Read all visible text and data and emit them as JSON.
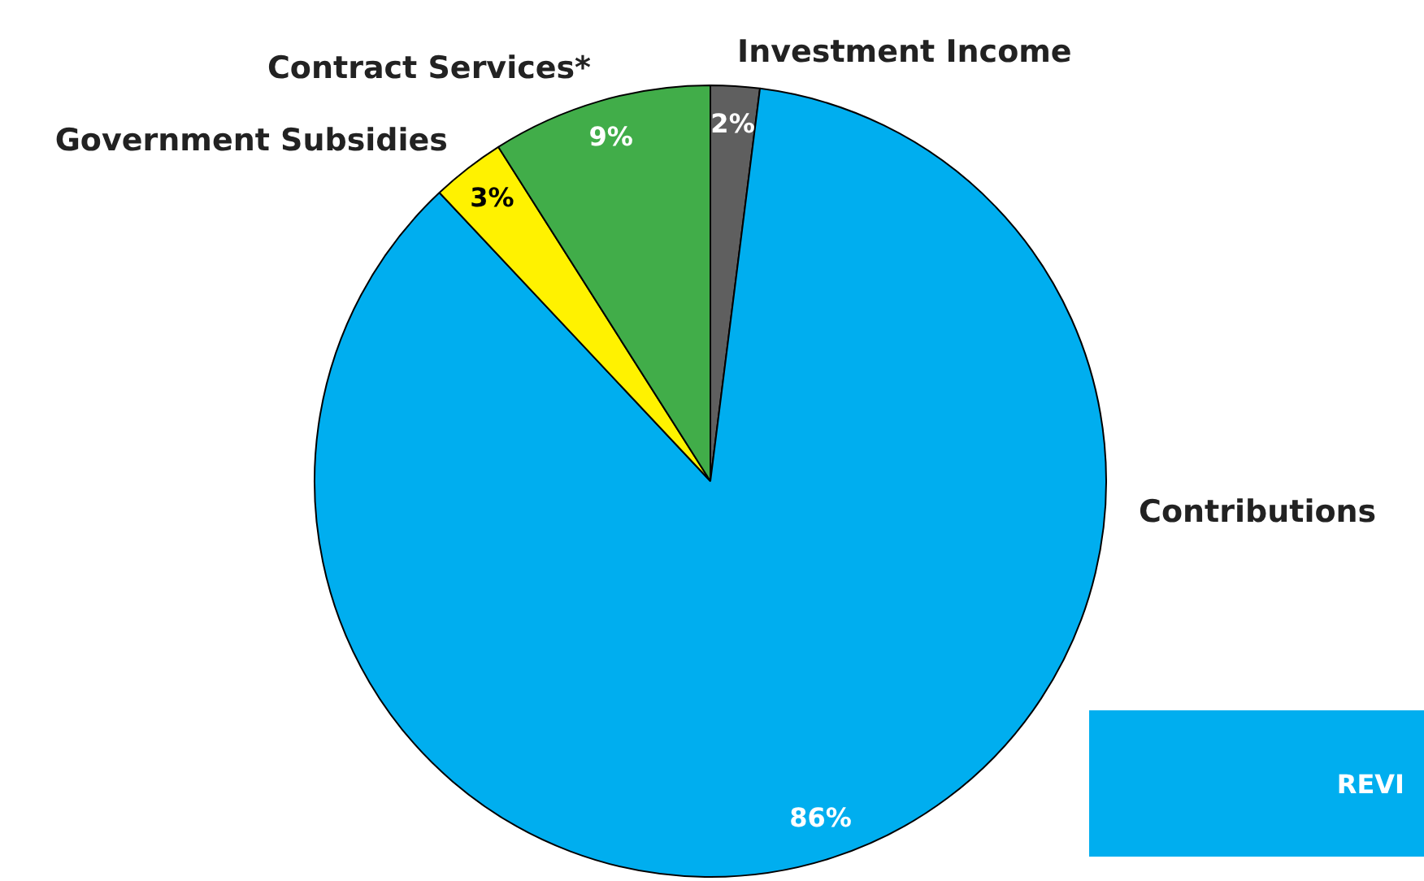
{
  "chart_data": {
    "type": "pie",
    "categories": [
      "Investment Income",
      "Contributions",
      "Government Subsidies",
      "Contract Services*"
    ],
    "values": [
      2,
      86,
      3,
      9
    ],
    "colors": [
      "#5f5f5f",
      "#00aeef",
      "#fff200",
      "#41ad49"
    ],
    "value_labels": [
      "2%",
      "86%",
      "3%",
      "9%"
    ],
    "legend": false,
    "annotations": [
      "REVI"
    ]
  }
}
